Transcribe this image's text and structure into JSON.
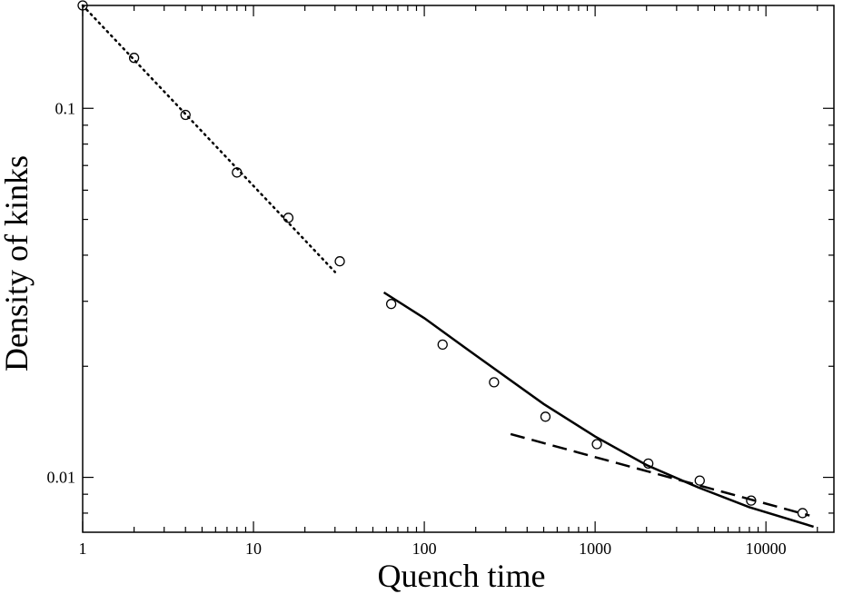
{
  "chart_data": {
    "type": "scatter",
    "title": "",
    "xlabel": "Quench time",
    "ylabel": "Density of kinks",
    "x_scale": "log",
    "y_scale": "log",
    "xlim": [
      1,
      25000
    ],
    "ylim": [
      0.0071,
      0.19
    ],
    "x_ticks": [
      {
        "value": 1,
        "label": "1"
      },
      {
        "value": 10,
        "label": "10"
      },
      {
        "value": 100,
        "label": "100"
      },
      {
        "value": 1000,
        "label": "1000"
      },
      {
        "value": 10000,
        "label": "10000"
      }
    ],
    "y_ticks": [
      {
        "value": 0.01,
        "label": "0.01"
      },
      {
        "value": 0.1,
        "label": "0.1"
      }
    ],
    "grid": false,
    "legend": "none",
    "series": [
      {
        "style": "open-circle-markers",
        "x": [
          1,
          2,
          4,
          8,
          16,
          32,
          64,
          128,
          256,
          512,
          1024,
          2048,
          4096,
          8192,
          16384
        ],
        "y": [
          0.19,
          0.137,
          0.096,
          0.067,
          0.0505,
          0.0385,
          0.0295,
          0.0229,
          0.0181,
          0.0146,
          0.0123,
          0.0109,
          0.0098,
          0.00865,
          0.008
        ]
      },
      {
        "style": "dotted-line",
        "x": [
          1,
          30
        ],
        "y": [
          0.19,
          0.036
        ]
      },
      {
        "style": "solid-line",
        "x": [
          58,
          100,
          200,
          500,
          1000,
          2000,
          4000,
          8000,
          19000
        ],
        "y": [
          0.0317,
          0.027,
          0.0214,
          0.0158,
          0.0129,
          0.0108,
          0.0094,
          0.0083,
          0.00735
        ]
      },
      {
        "style": "dashed-line",
        "x": [
          320,
          18000
        ],
        "y": [
          0.0131,
          0.00788
        ]
      }
    ]
  }
}
